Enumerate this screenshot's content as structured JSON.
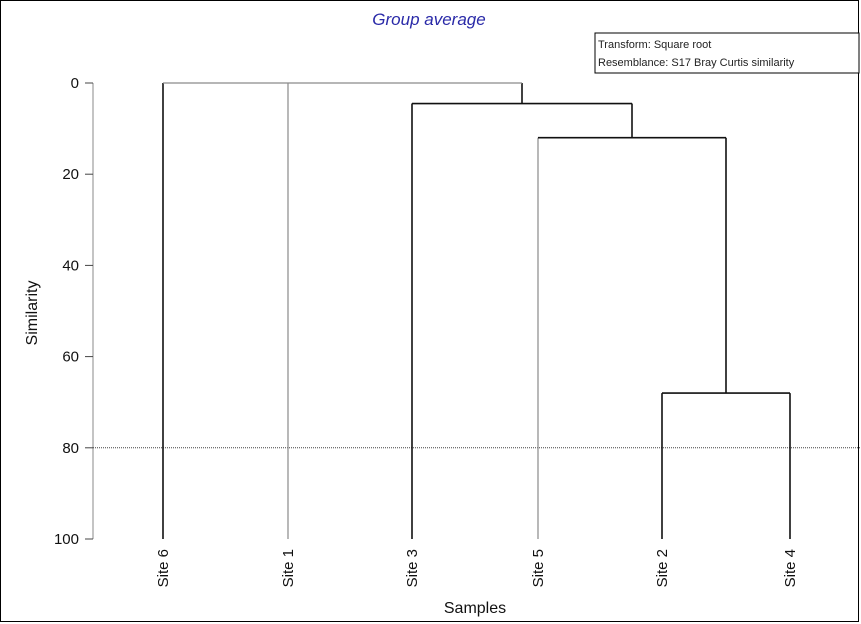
{
  "chart_data": {
    "type": "dendrogram",
    "title": "Group average",
    "xlabel": "Samples",
    "ylabel": "Similarity",
    "ylim": [
      0,
      100
    ],
    "y_ticks": [
      0,
      20,
      40,
      60,
      80,
      100
    ],
    "y_tick_labels": [
      "0",
      "20",
      "40",
      "60",
      "80",
      "100"
    ],
    "leaves": [
      "Site 6",
      "Site 1",
      "Site 3",
      "Site 5",
      "Site 2",
      "Site 4"
    ],
    "merges": [
      {
        "name": "Site 2 + Site 4",
        "children": [
          "Site 2",
          "Site 4"
        ],
        "similarity": 68
      },
      {
        "name": "Site 5 + (Site 2, Site 4)",
        "children": [
          "Site 5",
          "Site 2 + Site 4"
        ],
        "similarity": 12
      },
      {
        "name": "Site 3 + (Site 5, Site 2, Site 4)",
        "children": [
          "Site 3",
          "Site 5 + (Site 2, Site 4)"
        ],
        "similarity": 4.5
      },
      {
        "name": "root",
        "children": [
          "Site 6",
          "Site 1",
          "Site 3 + (Site 5, Site 2, Site 4)"
        ],
        "similarity": 0
      }
    ],
    "reference_line": 80,
    "legend": [
      "Transform: Square root",
      "Resemblance: S17 Bray Curtis similarity"
    ],
    "legend_position": "top-right",
    "grid": false,
    "colors": {
      "title": "#2a2aa8",
      "branch_dark": "#111111",
      "branch_light": "#8a8a8a",
      "reference_line": "#444444"
    }
  }
}
